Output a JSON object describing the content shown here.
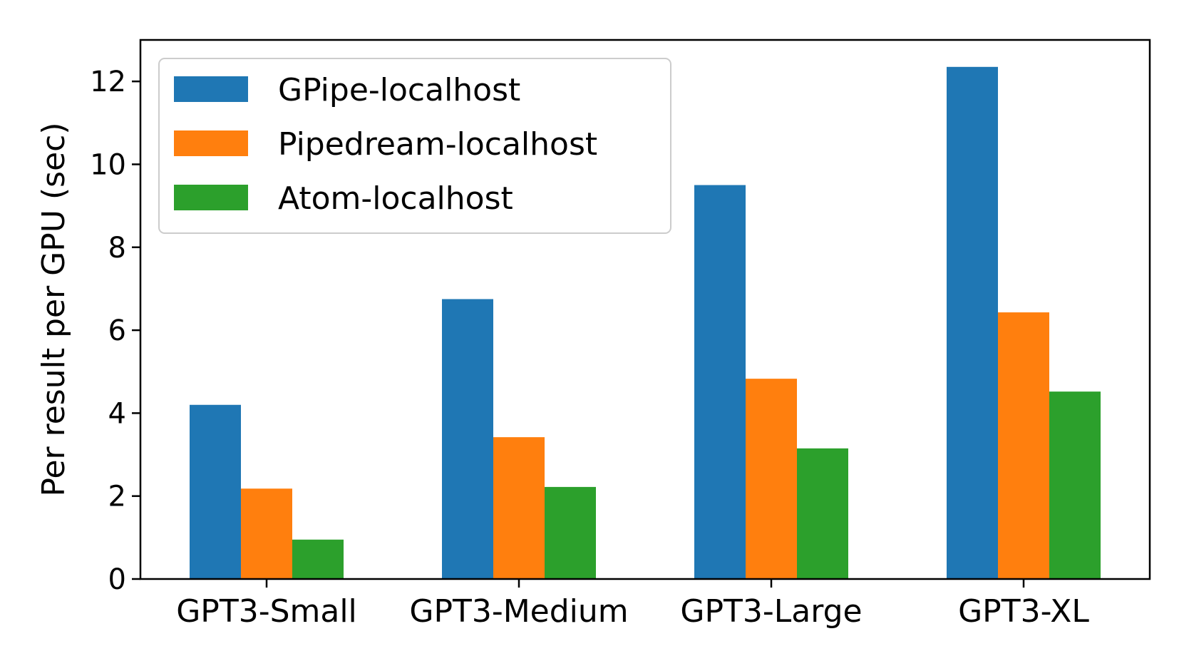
{
  "chart_data": {
    "type": "bar",
    "categories": [
      "GPT3-Small",
      "GPT3-Medium",
      "GPT3-Large",
      "GPT3-XL"
    ],
    "series": [
      {
        "name": "GPipe-localhost",
        "color": "#1f77b4",
        "values": [
          4.2,
          6.75,
          9.5,
          12.35
        ]
      },
      {
        "name": "Pipedream-localhost",
        "color": "#ff7f0e",
        "values": [
          2.18,
          3.42,
          4.83,
          6.43
        ]
      },
      {
        "name": "Atom-localhost",
        "color": "#2ca02c",
        "values": [
          0.95,
          2.22,
          3.15,
          4.52
        ]
      }
    ],
    "ylabel": "Per result per GPU (sec)",
    "ylim": [
      0,
      13
    ],
    "yticks": [
      0,
      2,
      4,
      6,
      8,
      10,
      12
    ],
    "grid": false,
    "legend_position": "top-left"
  }
}
